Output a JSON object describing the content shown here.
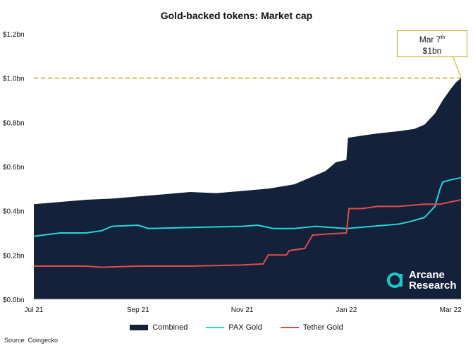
{
  "colors": {
    "combined": "#14213a",
    "pax": "#1ed8d8",
    "tether": "#e24b4b",
    "callout": "#d4a017",
    "brand": "#19c8c8"
  },
  "chart_data": {
    "type": "area",
    "title": "Gold-backed tokens: Market cap",
    "source": "Source: Coingecko",
    "x_ticks": [
      "Jul 21",
      "Sep 21",
      "Nov 21",
      "Jan 22",
      "Mar 22"
    ],
    "y_ticks": [
      "$0.0bn",
      "$0.2bn",
      "$0.4bn",
      "$0.6bn",
      "$0.8bn",
      "$1.0bn",
      "$1.2bn"
    ],
    "ylim": [
      0,
      1.2
    ],
    "x_range_months": [
      0,
      8.2
    ],
    "legend": {
      "placement": "bottom"
    },
    "series": [
      {
        "name": "Combined",
        "style": "area",
        "points": [
          [
            0,
            0.43
          ],
          [
            0.5,
            0.44
          ],
          [
            1,
            0.45
          ],
          [
            1.5,
            0.455
          ],
          [
            2,
            0.465
          ],
          [
            2.5,
            0.475
          ],
          [
            3,
            0.485
          ],
          [
            3.5,
            0.48
          ],
          [
            4,
            0.49
          ],
          [
            4.5,
            0.5
          ],
          [
            5,
            0.52
          ],
          [
            5.3,
            0.55
          ],
          [
            5.6,
            0.58
          ],
          [
            5.8,
            0.62
          ],
          [
            6,
            0.63
          ],
          [
            6.03,
            0.73
          ],
          [
            6.3,
            0.74
          ],
          [
            6.6,
            0.75
          ],
          [
            7,
            0.76
          ],
          [
            7.3,
            0.77
          ],
          [
            7.5,
            0.79
          ],
          [
            7.7,
            0.84
          ],
          [
            7.85,
            0.9
          ],
          [
            8,
            0.95
          ],
          [
            8.1,
            0.98
          ],
          [
            8.2,
            1.0
          ]
        ]
      },
      {
        "name": "PAX Gold",
        "style": "line",
        "points": [
          [
            0,
            0.285
          ],
          [
            0.5,
            0.3
          ],
          [
            1,
            0.3
          ],
          [
            1.3,
            0.31
          ],
          [
            1.5,
            0.33
          ],
          [
            2,
            0.335
          ],
          [
            2.2,
            0.32
          ],
          [
            3,
            0.325
          ],
          [
            4,
            0.33
          ],
          [
            4.3,
            0.335
          ],
          [
            4.6,
            0.32
          ],
          [
            5,
            0.32
          ],
          [
            5.4,
            0.33
          ],
          [
            6,
            0.32
          ],
          [
            6.5,
            0.33
          ],
          [
            7,
            0.34
          ],
          [
            7.2,
            0.35
          ],
          [
            7.5,
            0.37
          ],
          [
            7.7,
            0.42
          ],
          [
            7.8,
            0.5
          ],
          [
            7.85,
            0.53
          ],
          [
            8,
            0.54
          ],
          [
            8.2,
            0.55
          ]
        ]
      },
      {
        "name": "Tether Gold",
        "style": "line",
        "points": [
          [
            0,
            0.15
          ],
          [
            0.5,
            0.15
          ],
          [
            1,
            0.15
          ],
          [
            1.3,
            0.145
          ],
          [
            2,
            0.15
          ],
          [
            3,
            0.15
          ],
          [
            4,
            0.155
          ],
          [
            4.4,
            0.16
          ],
          [
            4.5,
            0.2
          ],
          [
            4.85,
            0.2
          ],
          [
            4.9,
            0.22
          ],
          [
            5.2,
            0.23
          ],
          [
            5.3,
            0.27
          ],
          [
            5.35,
            0.29
          ],
          [
            5.6,
            0.295
          ],
          [
            6,
            0.3
          ],
          [
            6.05,
            0.41
          ],
          [
            6.3,
            0.41
          ],
          [
            6.6,
            0.42
          ],
          [
            7,
            0.42
          ],
          [
            7.5,
            0.43
          ],
          [
            7.8,
            0.43
          ],
          [
            8,
            0.44
          ],
          [
            8.2,
            0.45
          ]
        ]
      }
    ],
    "annotations": [
      {
        "label": "Mar 7",
        "label_sup": "th",
        "value": "$1bn",
        "target": [
          8.2,
          1.0
        ],
        "line_y": 1.0
      }
    ]
  },
  "brand": {
    "line1": "Arcane",
    "line2": "Research"
  }
}
